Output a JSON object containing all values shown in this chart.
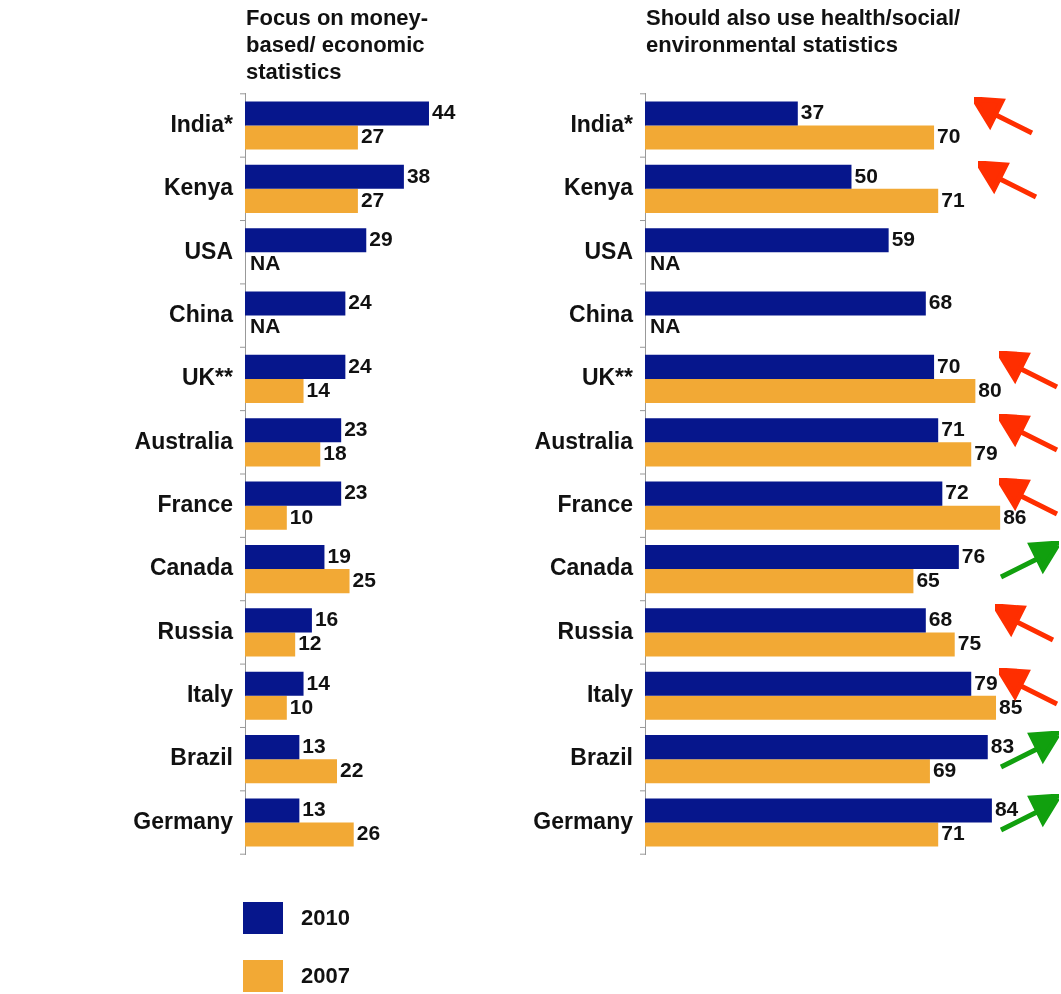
{
  "chart_data": [
    {
      "type": "bar",
      "orientation": "horizontal",
      "title": "Focus on money-based/ economic statistics",
      "categories": [
        "India*",
        "Kenya",
        "USA",
        "China",
        "UK**",
        "Australia",
        "France",
        "Canada",
        "Russia",
        "Italy",
        "Brazil",
        "Germany"
      ],
      "legend": "bottom left",
      "series": [
        {
          "name": "2010",
          "color": "#06168c",
          "values": [
            44,
            38,
            29,
            24,
            24,
            23,
            23,
            19,
            16,
            14,
            13,
            13
          ],
          "value_labels": [
            "44",
            "38",
            "29",
            "24",
            "24",
            "23",
            "23",
            "19",
            "16",
            "14",
            "13",
            "13"
          ]
        },
        {
          "name": "2007",
          "color": "#f2a935",
          "values": [
            27,
            27,
            null,
            null,
            14,
            18,
            10,
            25,
            12,
            10,
            22,
            26
          ],
          "value_labels": [
            "27",
            "27",
            "NA",
            "NA",
            "14",
            "18",
            "10",
            "25",
            "12",
            "10",
            "22",
            "26"
          ]
        }
      ]
    },
    {
      "type": "bar",
      "orientation": "horizontal",
      "title": "Should also use health/social/ environmental statistics",
      "categories": [
        "India*",
        "Kenya",
        "USA",
        "China",
        "UK**",
        "Australia",
        "France",
        "Canada",
        "Russia",
        "Italy",
        "Brazil",
        "Germany"
      ],
      "series": [
        {
          "name": "2010",
          "color": "#06168c",
          "values": [
            37,
            50,
            59,
            68,
            70,
            71,
            72,
            76,
            68,
            79,
            83,
            84
          ],
          "value_labels": [
            "37",
            "50",
            "59",
            "68",
            "70",
            "71",
            "72",
            "76",
            "68",
            "79",
            "83",
            "84"
          ]
        },
        {
          "name": "2007",
          "color": "#f2a935",
          "values": [
            70,
            71,
            null,
            null,
            80,
            79,
            86,
            65,
            75,
            85,
            69,
            71
          ],
          "value_labels": [
            "70",
            "71",
            "NA",
            "NA",
            "80",
            "79",
            "86",
            "65",
            "75",
            "85",
            "69",
            "71"
          ]
        }
      ]
    }
  ]
}
